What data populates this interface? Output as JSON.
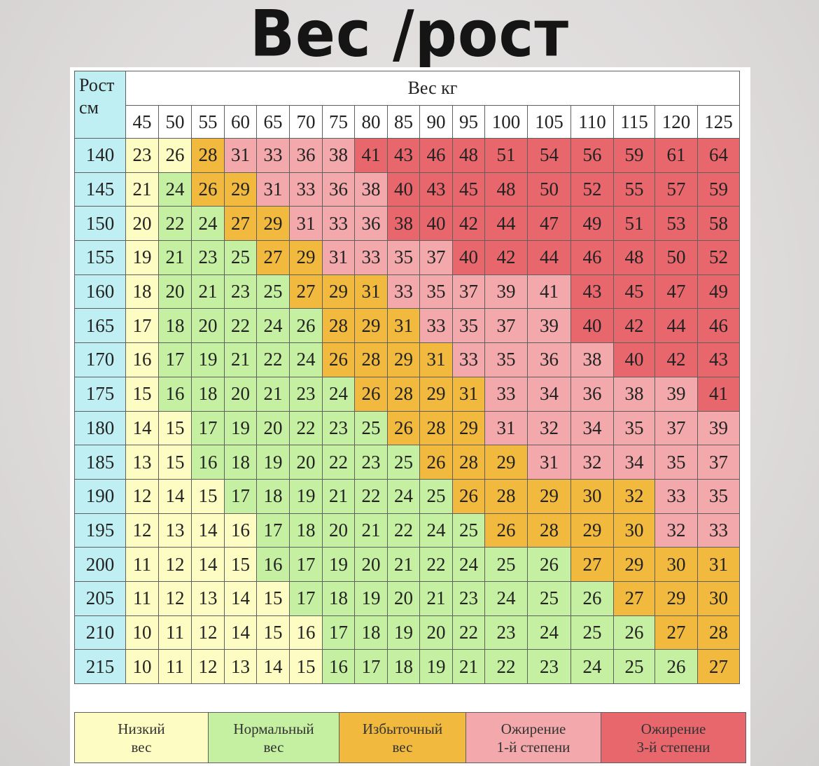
{
  "title": "Вес /рост",
  "chart_data": {
    "type": "table",
    "corner_label": [
      "Рост",
      "см"
    ],
    "weight_header": "Вес кг",
    "weights": [
      45,
      50,
      55,
      60,
      65,
      70,
      75,
      80,
      85,
      90,
      95,
      100,
      105,
      110,
      115,
      120,
      125
    ],
    "heights": [
      140,
      145,
      150,
      155,
      160,
      165,
      170,
      175,
      180,
      185,
      190,
      195,
      200,
      205,
      210,
      215
    ],
    "values": [
      [
        23,
        26,
        28,
        31,
        33,
        36,
        38,
        41,
        43,
        46,
        48,
        51,
        54,
        56,
        59,
        61,
        64
      ],
      [
        21,
        24,
        26,
        29,
        31,
        33,
        36,
        38,
        40,
        43,
        45,
        48,
        50,
        52,
        55,
        57,
        59
      ],
      [
        20,
        22,
        24,
        27,
        29,
        31,
        33,
        36,
        38,
        40,
        42,
        44,
        47,
        49,
        51,
        53,
        58
      ],
      [
        19,
        21,
        23,
        25,
        27,
        29,
        31,
        33,
        35,
        37,
        40,
        42,
        44,
        46,
        48,
        50,
        52
      ],
      [
        18,
        20,
        21,
        23,
        25,
        27,
        29,
        31,
        33,
        35,
        37,
        39,
        41,
        43,
        45,
        47,
        49
      ],
      [
        17,
        18,
        20,
        22,
        24,
        26,
        28,
        29,
        31,
        33,
        35,
        37,
        39,
        40,
        42,
        44,
        46
      ],
      [
        16,
        17,
        19,
        21,
        22,
        24,
        26,
        28,
        29,
        31,
        33,
        35,
        36,
        38,
        40,
        42,
        43
      ],
      [
        15,
        16,
        18,
        20,
        21,
        23,
        24,
        26,
        28,
        29,
        31,
        33,
        34,
        36,
        38,
        39,
        41
      ],
      [
        14,
        15,
        17,
        19,
        20,
        22,
        23,
        25,
        26,
        28,
        29,
        31,
        32,
        34,
        35,
        37,
        39
      ],
      [
        13,
        15,
        16,
        18,
        19,
        20,
        22,
        23,
        25,
        26,
        28,
        29,
        31,
        32,
        34,
        35,
        37
      ],
      [
        12,
        14,
        15,
        17,
        18,
        19,
        21,
        22,
        24,
        25,
        26,
        28,
        29,
        30,
        32,
        33,
        35
      ],
      [
        12,
        13,
        14,
        16,
        17,
        18,
        20,
        21,
        22,
        24,
        25,
        26,
        28,
        29,
        30,
        32,
        33
      ],
      [
        11,
        12,
        14,
        15,
        16,
        17,
        19,
        20,
        21,
        22,
        24,
        25,
        26,
        27,
        29,
        30,
        31
      ],
      [
        11,
        12,
        13,
        14,
        15,
        17,
        18,
        19,
        20,
        21,
        23,
        24,
        25,
        26,
        27,
        29,
        30
      ],
      [
        10,
        11,
        12,
        14,
        15,
        16,
        17,
        18,
        19,
        20,
        22,
        23,
        24,
        25,
        26,
        27,
        28
      ],
      [
        10,
        11,
        12,
        13,
        14,
        15,
        16,
        17,
        18,
        19,
        21,
        22,
        23,
        24,
        25,
        26,
        27
      ]
    ],
    "categories": [
      "uuoppppr rrrrrrrrr",
      "unoopppprrrrrrrrr",
      "unnooppprrrrrrrrr",
      "unnnoopppprrrrrrr",
      "unnnnoooppppprrrr",
      "unnnnnooopppprrrr",
      "unnnnnoooopppprrr",
      "unnnnnnoooopppppr",
      "uunnnnnnoooppppp p",
      "uunnnnnnnoooppppp",
      "uuunnnnnnnoooooppp",
      "uuuunnnnnnnoooopp",
      "uuuunnnnnnnnnoooo",
      "uuuuunnnnnnnnnooo",
      "uuuuuunnnnnnnnnoo",
      "uuuuuunnnnnnnnnnoo"
    ],
    "colors": {
      "u": "#fdfcc2",
      "n": "#c5f0a2",
      "o": "#f1b93e",
      "p": "#f3a9ab",
      "r": "#e7676d"
    }
  },
  "legend": [
    {
      "key": "u",
      "line1": "Низкий",
      "line2": "вес"
    },
    {
      "key": "n",
      "line1": "Нормальный",
      "line2": "вес"
    },
    {
      "key": "o",
      "line1": "Избыточный",
      "line2": "вес"
    },
    {
      "key": "p",
      "line1": "Ожирение",
      "line2": "1-й степени"
    },
    {
      "key": "r",
      "line1": "Ожирение",
      "line2": "3-й степени"
    }
  ]
}
